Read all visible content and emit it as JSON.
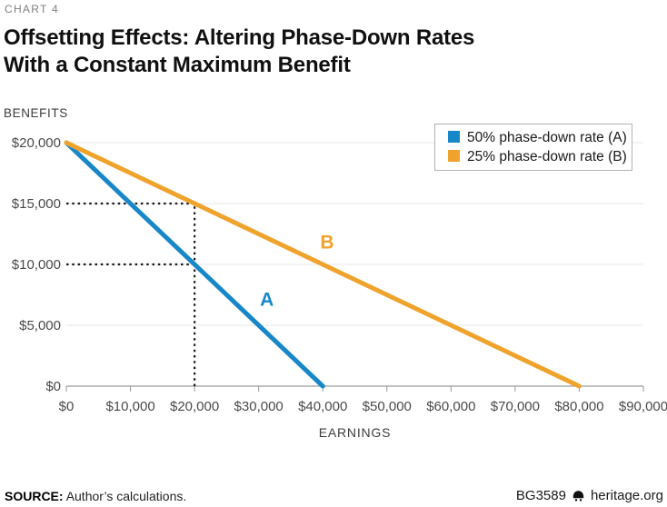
{
  "header": {
    "chart_label": "CHART 4",
    "title_line1": "Offsetting Effects: Altering Phase-Down Rates",
    "title_line2": "With a Constant Maximum Benefit"
  },
  "footer": {
    "source_label": "SOURCE:",
    "source_text": "Author’s calculations.",
    "doc_id": "BG3589",
    "site": "heritage.org",
    "site_icon": "liberty-bell-icon"
  },
  "colors": {
    "series_a_blue": "#1787c8",
    "series_b_orange": "#efa32c",
    "grid": "#e7e7e7",
    "axis": "#9a9a9a",
    "tick_label": "#4a4a4a",
    "annotation_dash": "#1a1a1a"
  },
  "chart_data": {
    "type": "line",
    "title": "Offsetting Effects: Altering Phase-Down Rates With a Constant Maximum Benefit",
    "xlabel": "EARNINGS",
    "ylabel": "BENEFITS",
    "xlim": [
      0,
      90000
    ],
    "ylim": [
      0,
      20000
    ],
    "grid": "horizontal",
    "legend_position": "top-right",
    "x_ticks": [
      {
        "value": 0,
        "label": "$0"
      },
      {
        "value": 10000,
        "label": "$10,000"
      },
      {
        "value": 20000,
        "label": "$20,000"
      },
      {
        "value": 30000,
        "label": "$30,000"
      },
      {
        "value": 40000,
        "label": "$40,000"
      },
      {
        "value": 50000,
        "label": "$50,000"
      },
      {
        "value": 60000,
        "label": "$60,000"
      },
      {
        "value": 70000,
        "label": "$70,000"
      },
      {
        "value": 80000,
        "label": "$80,000"
      },
      {
        "value": 90000,
        "label": "$90,000"
      }
    ],
    "y_ticks": [
      {
        "value": 0,
        "label": "$0"
      },
      {
        "value": 5000,
        "label": "$5,000"
      },
      {
        "value": 10000,
        "label": "$10,000"
      },
      {
        "value": 15000,
        "label": "$15,000"
      },
      {
        "value": 20000,
        "label": "$20,000"
      }
    ],
    "series": [
      {
        "name": "50% phase-down rate (A)",
        "short_label": "A",
        "color": "#1787c8",
        "phase_down_rate_pct": 50,
        "points": [
          [
            0,
            20000
          ],
          [
            40000,
            0
          ]
        ],
        "label_pos": [
          30200,
          6600
        ]
      },
      {
        "name": "25% phase-down rate (B)",
        "short_label": "B",
        "color": "#efa32c",
        "phase_down_rate_pct": 25,
        "points": [
          [
            0,
            20000
          ],
          [
            80000,
            0
          ]
        ],
        "label_pos": [
          39600,
          11300
        ]
      }
    ],
    "annotations": {
      "dashed_lines": [
        {
          "x1": 0,
          "y1": 15000,
          "x2": 20000,
          "y2": 15000
        },
        {
          "x1": 0,
          "y1": 10000,
          "x2": 20000,
          "y2": 10000
        },
        {
          "x1": 20000,
          "y1": 0,
          "x2": 20000,
          "y2": 15000
        }
      ]
    }
  }
}
